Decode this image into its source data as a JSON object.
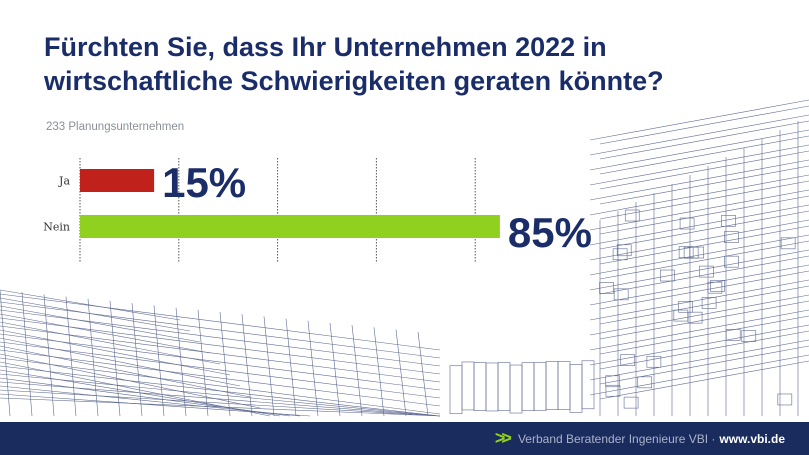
{
  "title": "Fürchten Sie, dass Ihr Unternehmen 2022 in wirtschaftliche Schwierigkeiten geraten könnte?",
  "subtitle": "233 Planungsunternehmen",
  "footer": {
    "org": "Verband Beratender Ingenieure VBI ·",
    "url": "www.vbi.de"
  },
  "chart_data": {
    "type": "bar",
    "orientation": "horizontal",
    "categories": [
      "Ja",
      "Nein"
    ],
    "values": [
      15,
      85
    ],
    "labels": [
      "15%",
      "85%"
    ],
    "colors": [
      "#c0221b",
      "#8fd11e"
    ],
    "xlim": [
      0,
      100
    ],
    "gridlines": [
      0,
      20,
      40,
      60,
      80
    ],
    "grid": true
  }
}
